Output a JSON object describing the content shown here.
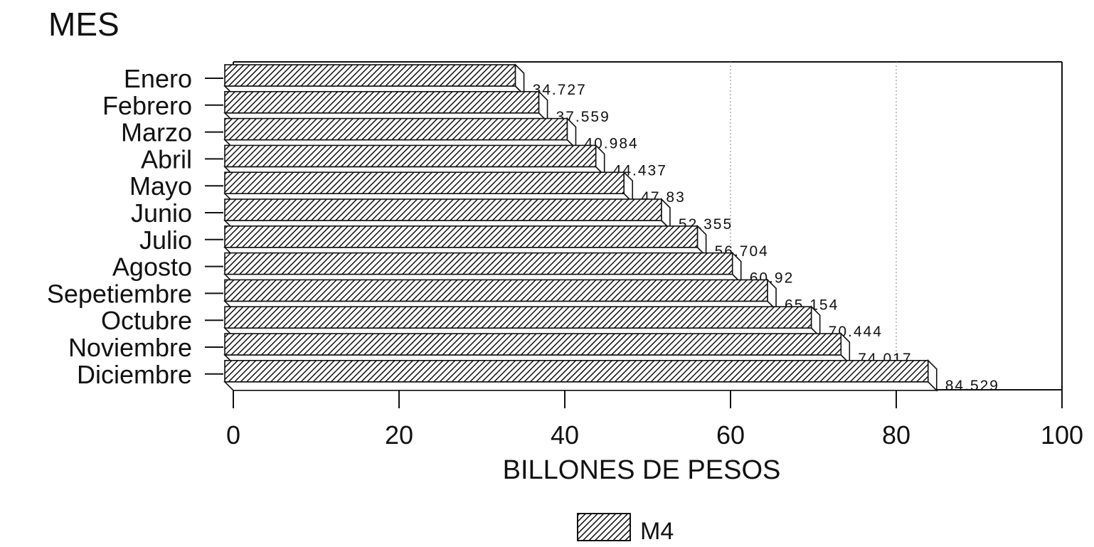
{
  "chart_data": {
    "type": "bar",
    "orientation": "horizontal",
    "title": "MES",
    "xlabel": "BILLONES DE PESOS",
    "ylabel": "",
    "categories": [
      "Enero",
      "Febrero",
      "Marzo",
      "Abril",
      "Mayo",
      "Junio",
      "Julio",
      "Agosto",
      "Sepetiembre",
      "Octubre",
      "Noviembre",
      "Diciembre"
    ],
    "series": [
      {
        "name": "M4",
        "values": [
          34.727,
          37.559,
          40.984,
          44.437,
          47.83,
          52.355,
          56.704,
          60.92,
          65.154,
          70.444,
          74.017,
          84.529
        ],
        "labels": [
          "34.727",
          "37.559",
          "40.984",
          "44.437",
          "47.83",
          "52.355",
          "56.704",
          "60.92",
          "65.154",
          "70.444",
          "74.017",
          "84.529"
        ]
      }
    ],
    "xlim": [
      0,
      100
    ],
    "xticks": [
      "0",
      "20",
      "40",
      "60",
      "80",
      "100"
    ],
    "xtick_values": [
      0,
      20,
      40,
      60,
      80,
      100
    ],
    "gridlines": [
      60,
      80
    ],
    "bar_style": "3d-hatched",
    "legend": {
      "position": "bottom-center",
      "entries": [
        "M4"
      ]
    },
    "colors": {
      "ink": "#111111",
      "background": "#ffffff",
      "grid": "#999999"
    }
  }
}
